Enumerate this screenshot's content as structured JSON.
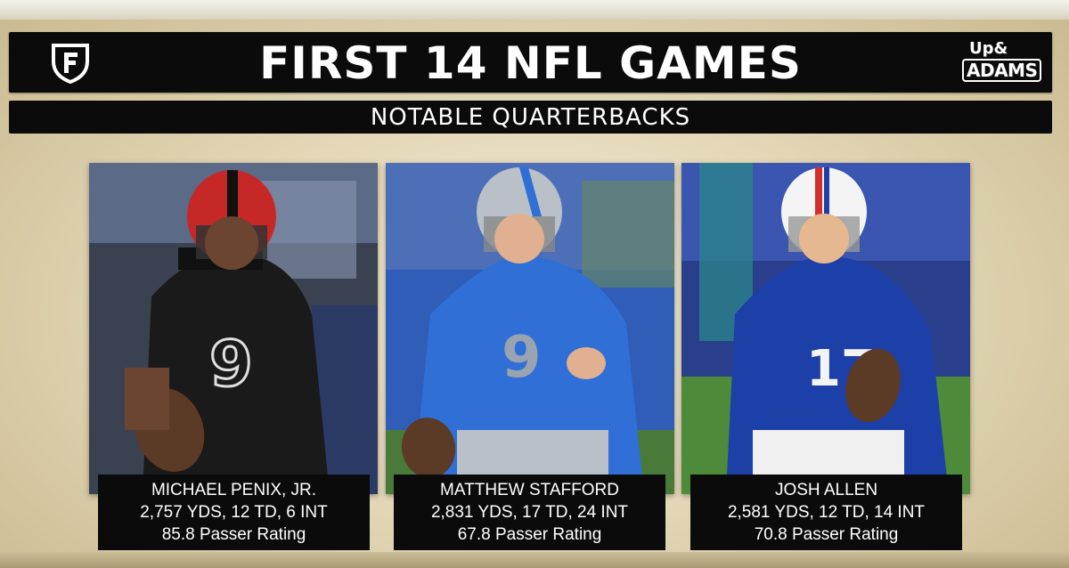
{
  "header": {
    "title": "FIRST 14 NFL GAMES",
    "subtitle": "NOTABLE QUARTERBACKS",
    "left_logo_icon": "fanduel-shield-icon",
    "right_logo": {
      "line1": "Up&",
      "line2": "ADAMS"
    }
  },
  "players": [
    {
      "name": "MICHAEL PENIX, JR.",
      "stats": "2,757 YDS, 12 TD, 6 INT",
      "rating": "85.8 Passer Rating",
      "photo": {
        "team_color": "#1a1a1a",
        "helmet_color": "#d32f2f",
        "jersey_number": "9"
      }
    },
    {
      "name": "MATTHEW STAFFORD",
      "stats": "2,831 YDS, 17 TD, 24 INT",
      "rating": "67.8 Passer Rating",
      "photo": {
        "team_color": "#2f6fd6",
        "helmet_color": "#b9c0c8",
        "jersey_number": "9"
      }
    },
    {
      "name": "JOSH ALLEN",
      "stats": "2,581 YDS, 12 TD, 14 INT",
      "rating": "70.8 Passer Rating",
      "photo": {
        "team_color": "#1c3fa8",
        "helmet_color": "#f4f4f4",
        "jersey_number": "17"
      }
    }
  ]
}
